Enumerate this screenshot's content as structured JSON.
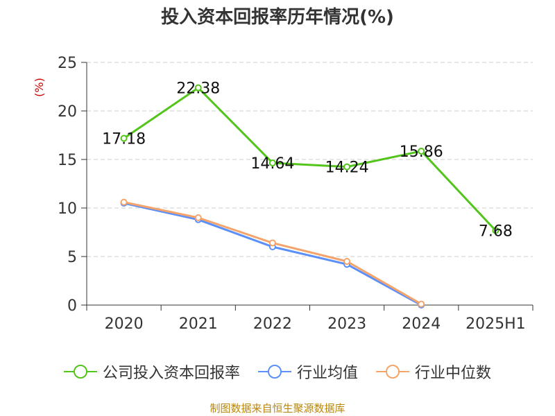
{
  "title": "投入资本回报率历年情况(%)",
  "source": "制图数据来自恒生聚源数据库",
  "colors": {
    "company": "#52c41a",
    "industry_avg": "#5b8ff9",
    "industry_median": "#f4a46a",
    "grid": "#cccccc",
    "axis": "#333333",
    "unit": "#cc0000"
  },
  "chart_data": {
    "type": "line",
    "title": "投入资本回报率历年情况(%)",
    "ylabel": "(%)",
    "categories": [
      "2020",
      "2021",
      "2022",
      "2023",
      "2024",
      "2025H1"
    ],
    "ylim": [
      0,
      25
    ],
    "yticks": [
      "0",
      "5",
      "10",
      "15",
      "20",
      "25"
    ],
    "grid": true,
    "legend_position": "bottom",
    "series": [
      {
        "name": "公司投入资本回报率",
        "color": "#52c41a",
        "values": [
          17.18,
          22.38,
          14.64,
          14.24,
          15.86,
          7.68
        ],
        "labels": [
          "17.18",
          "22.38",
          "14.64",
          "14.24",
          "15.86",
          "7.68"
        ]
      },
      {
        "name": "行业均值",
        "color": "#5b8ff9",
        "values": [
          10.5,
          8.8,
          6.0,
          4.2,
          0.0,
          null
        ]
      },
      {
        "name": "行业中位数",
        "color": "#f4a46a",
        "values": [
          10.6,
          9.0,
          6.4,
          4.5,
          0.1,
          null
        ]
      }
    ]
  }
}
